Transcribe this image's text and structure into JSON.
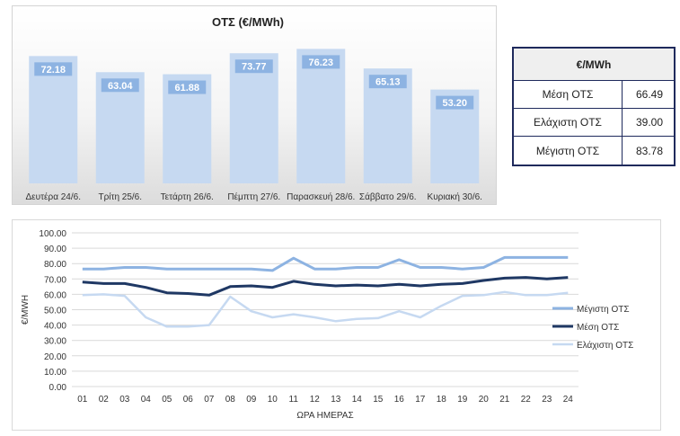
{
  "colors": {
    "bar_fill": "#c6d9f1",
    "bar_label_bg": "#8db3e2",
    "max_line": "#8db3e2",
    "mean_line": "#1f3864",
    "min_line": "#c6d9f1",
    "table_border": "#1f2a5c"
  },
  "stats_table": {
    "header": "€/MWh",
    "rows": [
      {
        "label": "Μέση ΟΤΣ",
        "value": "66.49"
      },
      {
        "label": "Ελάχιστη ΟΤΣ",
        "value": "39.00"
      },
      {
        "label": "Μέγιστη ΟΤΣ",
        "value": "83.78"
      }
    ]
  },
  "chart_data": [
    {
      "type": "bar",
      "title": "ΟΤΣ (€/MWh)",
      "categories": [
        "Δευτέρα 24/6.",
        "Τρίτη 25/6.",
        "Τετάρτη 26/6.",
        "Πέμπτη 27/6.",
        "Παρασκευή 28/6.",
        "Σάββατο 29/6.",
        "Κυριακή 30/6."
      ],
      "values": [
        72.18,
        63.04,
        61.88,
        73.77,
        76.23,
        65.13,
        53.2
      ],
      "value_labels": [
        "72.18",
        "63.04",
        "61.88",
        "73.77",
        "76.23",
        "65.13",
        "53.20"
      ],
      "ylim": [
        0,
        80
      ],
      "grid": false,
      "legend": "none"
    },
    {
      "type": "line",
      "title": "",
      "xlabel": "ΩΡΑ ΗΜΕΡΑΣ",
      "ylabel": "€/MWH",
      "x": [
        "01",
        "02",
        "03",
        "04",
        "05",
        "06",
        "07",
        "08",
        "09",
        "10",
        "11",
        "12",
        "13",
        "14",
        "15",
        "16",
        "17",
        "18",
        "19",
        "20",
        "21",
        "22",
        "23",
        "24"
      ],
      "yticks": [
        "0.00",
        "10.00",
        "20.00",
        "30.00",
        "40.00",
        "50.00",
        "60.00",
        "70.00",
        "80.00",
        "90.00",
        "100.00"
      ],
      "ylim": [
        0,
        100
      ],
      "grid": true,
      "legend": "right",
      "series": [
        {
          "name": "Μέγιστη ΟΤΣ",
          "color_key": "max_line",
          "width": 3,
          "values": [
            76.5,
            76.5,
            77.5,
            77.5,
            76.5,
            76.5,
            76.5,
            76.5,
            76.5,
            75.5,
            83.5,
            76.5,
            76.5,
            77.5,
            77.5,
            82.5,
            77.5,
            77.5,
            76.5,
            77.5,
            84,
            84,
            84,
            84
          ]
        },
        {
          "name": "Μέση ΟΤΣ",
          "color_key": "mean_line",
          "width": 3,
          "values": [
            68,
            67,
            67,
            64.5,
            61,
            60.5,
            59.5,
            65,
            65.5,
            64.5,
            68.5,
            66.5,
            65.5,
            66,
            65.5,
            66.5,
            65.5,
            66.5,
            67,
            69,
            70.5,
            71,
            70,
            71
          ]
        },
        {
          "name": "Ελάχιστη ΟΤΣ",
          "color_key": "min_line",
          "width": 2.5,
          "values": [
            59.5,
            60,
            59,
            45,
            39,
            39,
            40,
            58.5,
            49,
            45,
            47,
            45,
            42.5,
            44,
            44.5,
            49,
            45,
            52.5,
            59,
            59.5,
            61.5,
            59.5,
            59.5,
            61
          ]
        }
      ]
    }
  ]
}
